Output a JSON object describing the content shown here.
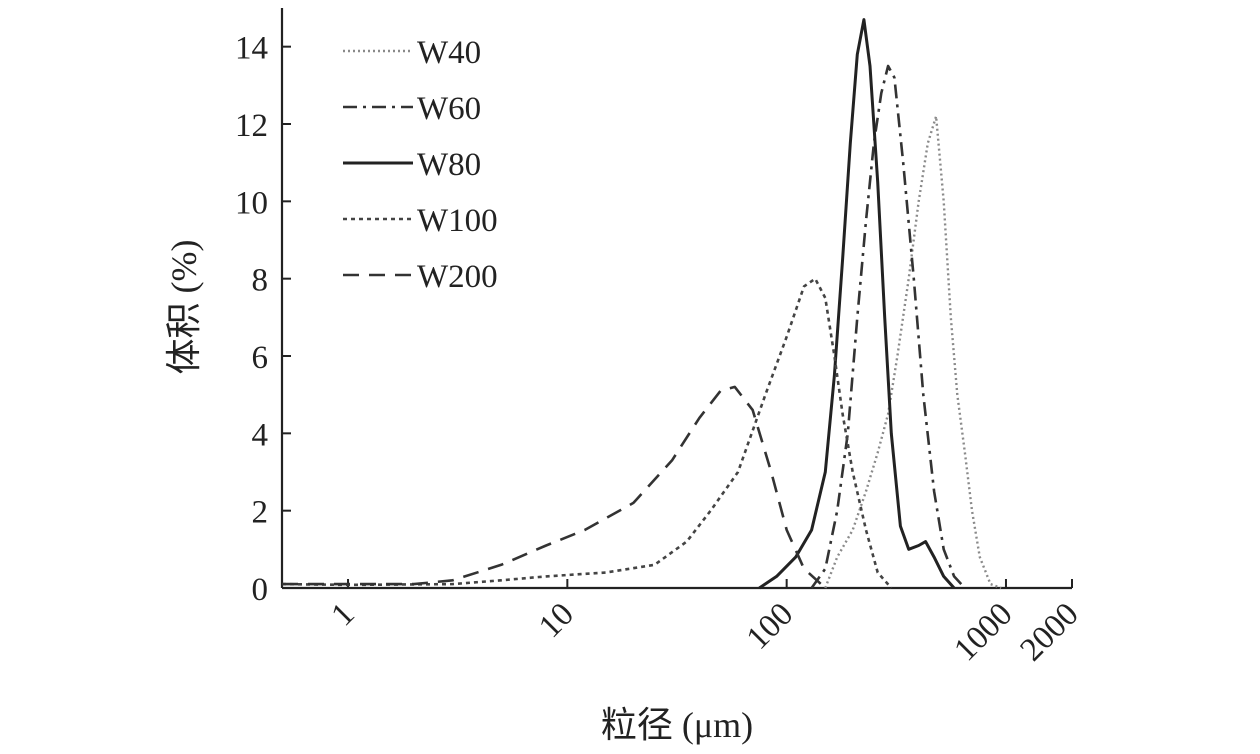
{
  "chart_data": {
    "type": "line",
    "xlabel": "粒径 (μm)",
    "ylabel": "体积 (%)",
    "x_scale": "log",
    "xlim": [
      0.5,
      2000
    ],
    "ylim": [
      0,
      15
    ],
    "x_ticks": [
      1,
      10,
      100,
      1000,
      2000
    ],
    "x_tick_labels": [
      "1",
      "10",
      "100",
      "1000",
      "2000"
    ],
    "y_ticks": [
      0,
      2,
      4,
      6,
      8,
      10,
      12,
      14
    ],
    "y_tick_labels": [
      "0",
      "2",
      "4",
      "6",
      "8",
      "10",
      "12",
      "14"
    ],
    "grid": false,
    "legend_position": "top-left",
    "series": [
      {
        "name": "W40",
        "style": "dotted",
        "color": "#8a8a8a",
        "points": [
          [
            150,
            0
          ],
          [
            170,
            0.8
          ],
          [
            200,
            1.5
          ],
          [
            230,
            2.5
          ],
          [
            260,
            3.5
          ],
          [
            290,
            4.5
          ],
          [
            320,
            6
          ],
          [
            360,
            8
          ],
          [
            400,
            10
          ],
          [
            440,
            11.5
          ],
          [
            480,
            12.2
          ],
          [
            520,
            10
          ],
          [
            560,
            7
          ],
          [
            600,
            5
          ],
          [
            650,
            3.5
          ],
          [
            700,
            2
          ],
          [
            760,
            0.8
          ],
          [
            850,
            0.1
          ],
          [
            950,
            0
          ]
        ]
      },
      {
        "name": "W60",
        "style": "dashdot",
        "color": "#333333",
        "points": [
          [
            130,
            0
          ],
          [
            150,
            0.5
          ],
          [
            170,
            2
          ],
          [
            190,
            4
          ],
          [
            210,
            7
          ],
          [
            230,
            9.5
          ],
          [
            250,
            11.5
          ],
          [
            270,
            12.8
          ],
          [
            290,
            13.5
          ],
          [
            310,
            13.2
          ],
          [
            340,
            11
          ],
          [
            380,
            8
          ],
          [
            420,
            5
          ],
          [
            470,
            2.5
          ],
          [
            520,
            1
          ],
          [
            580,
            0.3
          ],
          [
            650,
            0
          ]
        ]
      },
      {
        "name": "W80",
        "style": "solid",
        "color": "#222222",
        "points": [
          [
            75,
            0
          ],
          [
            90,
            0.3
          ],
          [
            110,
            0.8
          ],
          [
            130,
            1.5
          ],
          [
            150,
            3
          ],
          [
            165,
            5.5
          ],
          [
            180,
            8.5
          ],
          [
            195,
            11.5
          ],
          [
            210,
            13.8
          ],
          [
            225,
            14.7
          ],
          [
            240,
            13.5
          ],
          [
            260,
            10.5
          ],
          [
            280,
            7
          ],
          [
            300,
            4
          ],
          [
            330,
            1.6
          ],
          [
            360,
            1
          ],
          [
            400,
            1.1
          ],
          [
            430,
            1.2
          ],
          [
            470,
            0.8
          ],
          [
            520,
            0.3
          ],
          [
            580,
            0
          ]
        ]
      },
      {
        "name": "W100",
        "style": "dotted-dense",
        "color": "#444444",
        "points": [
          [
            0.5,
            0.1
          ],
          [
            1,
            0.08
          ],
          [
            3,
            0.1
          ],
          [
            5,
            0.2
          ],
          [
            8,
            0.3
          ],
          [
            15,
            0.4
          ],
          [
            25,
            0.6
          ],
          [
            35,
            1.2
          ],
          [
            45,
            2
          ],
          [
            60,
            3
          ],
          [
            80,
            5
          ],
          [
            100,
            6.5
          ],
          [
            120,
            7.8
          ],
          [
            135,
            8.0
          ],
          [
            150,
            7.5
          ],
          [
            165,
            6
          ],
          [
            180,
            4.5
          ],
          [
            200,
            3
          ],
          [
            230,
            1.5
          ],
          [
            260,
            0.4
          ],
          [
            300,
            0
          ]
        ]
      },
      {
        "name": "W200",
        "style": "dashed",
        "color": "#333333",
        "points": [
          [
            0.5,
            0.1
          ],
          [
            1,
            0.1
          ],
          [
            2,
            0.1
          ],
          [
            3,
            0.2
          ],
          [
            5,
            0.6
          ],
          [
            8,
            1.1
          ],
          [
            12,
            1.5
          ],
          [
            20,
            2.2
          ],
          [
            30,
            3.3
          ],
          [
            40,
            4.4
          ],
          [
            50,
            5.1
          ],
          [
            58,
            5.2
          ],
          [
            70,
            4.6
          ],
          [
            85,
            3
          ],
          [
            100,
            1.5
          ],
          [
            120,
            0.5
          ],
          [
            150,
            0
          ]
        ]
      }
    ]
  }
}
